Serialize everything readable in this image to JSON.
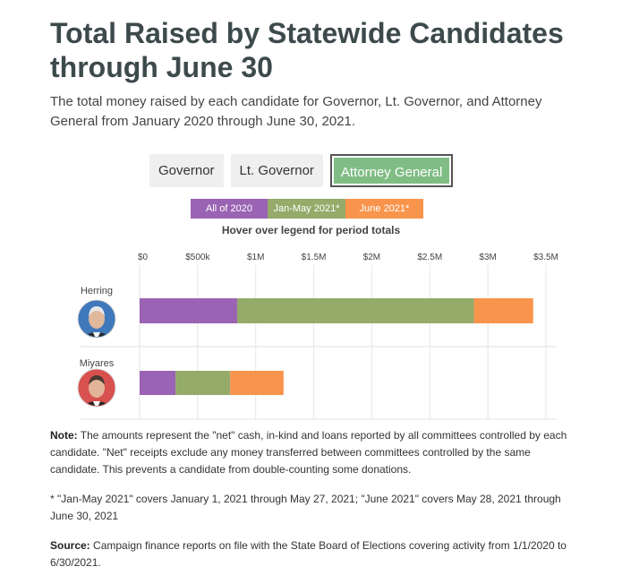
{
  "title": "Total Raised by Statewide Candidates through June 30",
  "subtitle": "The total money raised by each candidate for Governor, Lt. Governor, and Attorney General from January 2020 through June 30, 2021.",
  "tabs": [
    {
      "label": "Governor",
      "active": false
    },
    {
      "label": "Lt. Governor",
      "active": false
    },
    {
      "label": "Attorney General",
      "active": true
    }
  ],
  "hint": "Hover over legend for period totals",
  "chart_data": {
    "type": "bar",
    "orientation": "horizontal",
    "stacked": true,
    "categories": [
      "Herring",
      "Miyares"
    ],
    "series": [
      {
        "name": "All of 2020",
        "color": "#9b63b3",
        "values": [
          840000,
          310000
        ]
      },
      {
        "name": "Jan-May 2021*",
        "color": "#94ab6a",
        "values": [
          2040000,
          470000
        ]
      },
      {
        "name": "June 2021*",
        "color": "#f8944c",
        "values": [
          510000,
          460000
        ]
      }
    ],
    "xlim": [
      0,
      3500000
    ],
    "x_ticks": [
      0,
      500000,
      1000000,
      1500000,
      2000000,
      2500000,
      3000000,
      3500000
    ],
    "x_tick_labels": [
      "$0",
      "$500k",
      "$1M",
      "$1.5M",
      "$2M",
      "$2.5M",
      "$3M",
      "$3.5M"
    ],
    "grid": true,
    "legend_position": "top"
  },
  "notes": {
    "note_label": "Note:",
    "note_text": " The amounts represent the \"net\" cash, in-kind and loans reported by all committees controlled by each candidate. \"Net\" receipts exclude any money transferred between committees controlled by the same candidate. This prevents a candidate from double-counting some donations.",
    "footnote": "* \"Jan-May 2021\" covers January 1, 2021 through May 27, 2021; \"June 2021\" covers May 28, 2021 through June 30, 2021",
    "source_label": "Source:",
    "source_text": " Campaign finance reports on file with the State Board of Elections covering activity from 1/1/2020 to 6/30/2021."
  }
}
